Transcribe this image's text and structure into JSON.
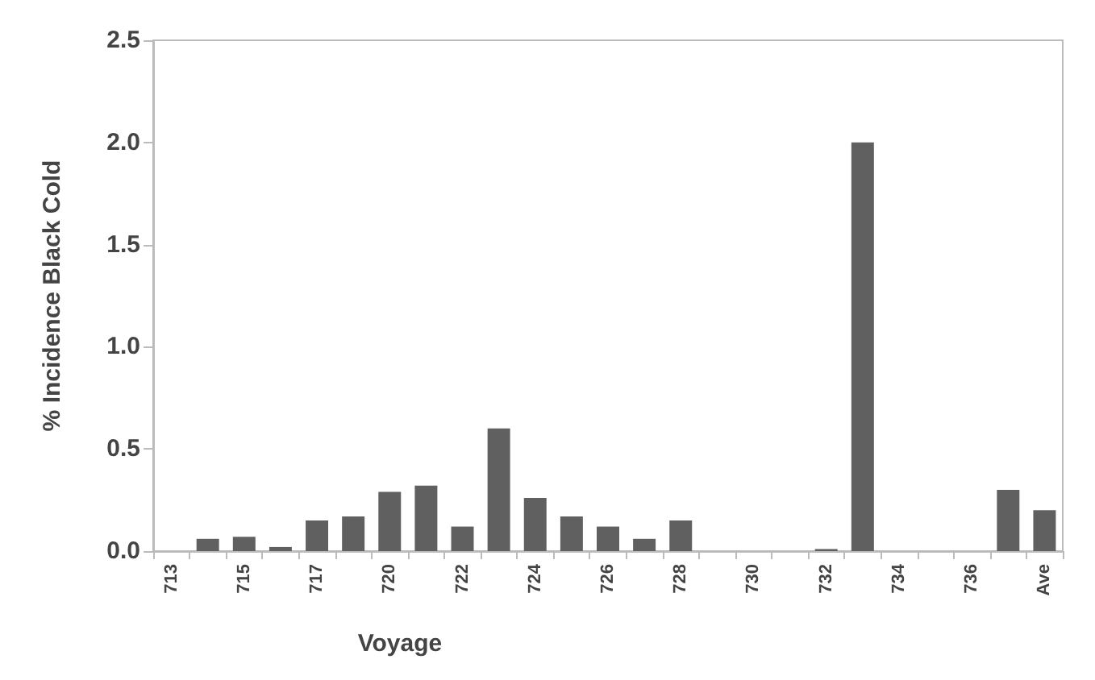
{
  "chart_data": {
    "type": "bar",
    "xlabel": "Voyage",
    "ylabel": "% Incidence Black Cold",
    "categories": [
      "713",
      null,
      "715",
      null,
      "717",
      null,
      "720",
      null,
      "722",
      null,
      "724",
      null,
      "726",
      null,
      "728",
      null,
      "730",
      null,
      "732",
      null,
      "734",
      null,
      "736",
      null,
      "Ave"
    ],
    "values": [
      0,
      0.06,
      0.07,
      0.02,
      0.15,
      0.17,
      0.29,
      0.32,
      0.12,
      0.6,
      0.26,
      0.17,
      0.12,
      0.06,
      0.15,
      0,
      0,
      0,
      0.01,
      2.0,
      0,
      0,
      0,
      0.3,
      0.2
    ],
    "color": "#606060",
    "ylim": [
      0,
      2.5
    ],
    "yticks": [
      {
        "value": 0,
        "label": "0.0"
      },
      0.5,
      {
        "value": 1,
        "label": "1.0"
      },
      1.5,
      {
        "value": 2,
        "label": "2.0"
      },
      2.5
    ],
    "grid": false
  }
}
